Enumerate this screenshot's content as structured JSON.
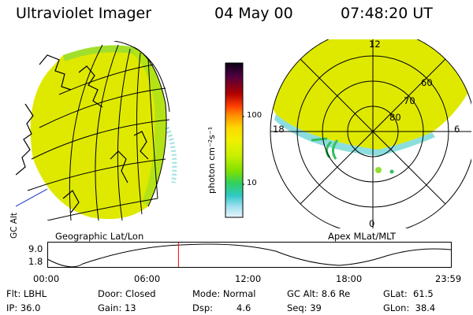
{
  "header": {
    "instrument": "Ultraviolet Imager",
    "date": "04 May 00",
    "time": "07:48:20 UT"
  },
  "panels": {
    "left_label": "Geographic Lat/Lon",
    "right_label": "Apex MLat/MLT"
  },
  "colorbar": {
    "unit_label": "photon cm⁻²s⁻¹",
    "ticks": [
      "100",
      "10"
    ],
    "scale": "log",
    "colors": [
      "#0a0014",
      "#4a0040",
      "#b00000",
      "#ff4000",
      "#ff9000",
      "#ffd800",
      "#f0f000",
      "#c8f000",
      "#80e000",
      "#30d060",
      "#30c8c8",
      "#a0e0f0",
      "#e8f4fa"
    ]
  },
  "polar": {
    "mlt_labels": [
      "12",
      "18",
      "6",
      "0"
    ],
    "lat_labels": [
      "60",
      "70",
      "80"
    ]
  },
  "altitude_plot": {
    "ylabel": "GC Alt",
    "yticks": [
      "9.0",
      "1.8"
    ],
    "xticks": [
      "00:00",
      "06:00",
      "12:00",
      "18:00",
      "23:59"
    ],
    "marker_time": "07:48",
    "marker_color": "#ff0000"
  },
  "status": {
    "flt": "Flt: LBHL",
    "ip": "IP: 36.0",
    "door": "Door: Closed",
    "gain": "Gain: 13",
    "mode": "Mode: Normal",
    "dsp_label": "Dsp:",
    "dsp_value": "4.6",
    "gcalt": "GC Alt: 8.6 Re",
    "seq": "Seq: 39",
    "glat": "GLat:  61.5",
    "glon": "GLon:  38.4"
  }
}
